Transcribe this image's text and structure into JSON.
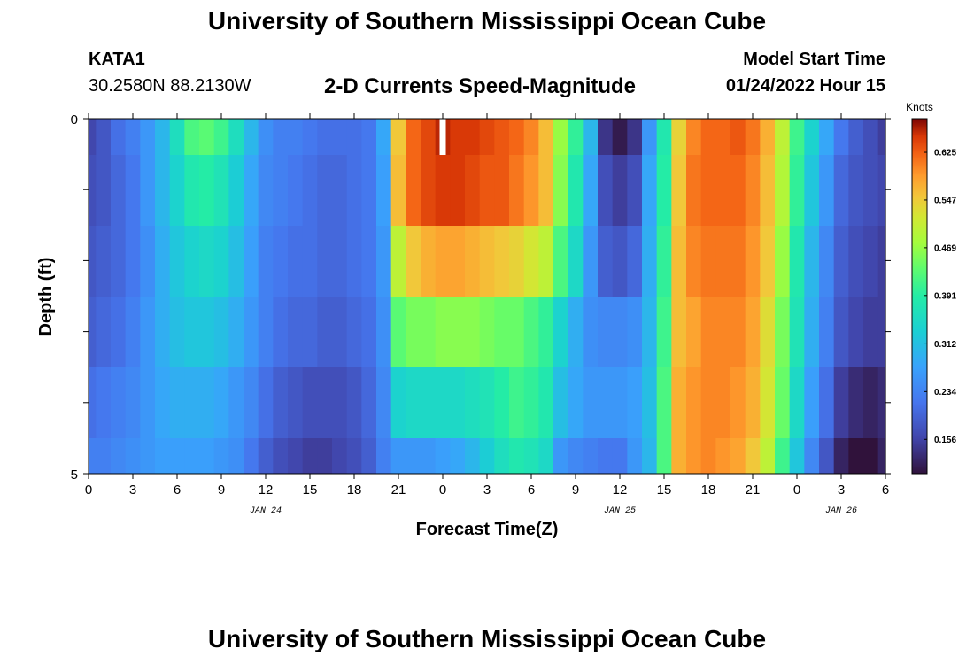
{
  "page": {
    "title": "University of Southern Mississippi Ocean Cube",
    "station": "KATA1",
    "coordinates": "30.2580N  88.2130W",
    "chart_title": "2-D Currents Speed-Magnitude",
    "model_start_label": "Model Start Time",
    "model_start_value": "01/24/2022 Hour 15",
    "footer_title": "University of Southern Mississippi Ocean Cube"
  },
  "chart_data": {
    "type": "heatmap",
    "title": "2-D Currents Speed-Magnitude",
    "xlabel": "Forecast Time(Z)",
    "ylabel": "Depth (ft)",
    "x_tick_labels": [
      "0",
      "3",
      "6",
      "9",
      "12",
      "15",
      "18",
      "21",
      "0",
      "3",
      "6",
      "9",
      "12",
      "15",
      "18",
      "21",
      "0",
      "3",
      "6"
    ],
    "date_labels": [
      {
        "label": "JAN 24",
        "at_hour": 12
      },
      {
        "label": "JAN 25",
        "at_hour": 36
      },
      {
        "label": "JAN 26",
        "at_hour": 51
      }
    ],
    "y_tick_labels": [
      "0",
      "5"
    ],
    "ylim": [
      0,
      5
    ],
    "x_range_hours": [
      0,
      54
    ],
    "colorbar": {
      "title": "Knots",
      "ticks": [
        "0.156",
        "0.234",
        "0.312",
        "0.391",
        "0.469",
        "0.547",
        "0.625"
      ],
      "range": [
        0.1,
        0.68
      ]
    },
    "depth_layers_ft": [
      0,
      0.5,
      1.5,
      2.5,
      3.5,
      4.5
    ],
    "hours": [
      0,
      1,
      2,
      3,
      4,
      5,
      6,
      7,
      8,
      9,
      10,
      11,
      12,
      13,
      14,
      15,
      16,
      17,
      18,
      19,
      20,
      21,
      22,
      23,
      24,
      25,
      26,
      27,
      28,
      29,
      30,
      31,
      32,
      33,
      34,
      35,
      36,
      37,
      38,
      39,
      40,
      41,
      42,
      43,
      44,
      45,
      46,
      47,
      48,
      49,
      50,
      51,
      52,
      53,
      54
    ],
    "speed_knots": [
      [
        0.16,
        0.18,
        0.21,
        0.23,
        0.26,
        0.3,
        0.36,
        0.42,
        0.43,
        0.41,
        0.36,
        0.3,
        0.25,
        0.23,
        0.23,
        0.22,
        0.21,
        0.21,
        0.21,
        0.22,
        0.28,
        0.55,
        0.62,
        0.64,
        0.66,
        0.65,
        0.65,
        0.64,
        0.63,
        0.62,
        0.6,
        0.56,
        0.47,
        0.4,
        0.3,
        0.14,
        0.11,
        0.14,
        0.26,
        0.38,
        0.54,
        0.6,
        0.62,
        0.62,
        0.63,
        0.61,
        0.57,
        0.5,
        0.41,
        0.34,
        0.28,
        0.22,
        0.19,
        0.17,
        0.15
      ],
      [
        0.17,
        0.18,
        0.2,
        0.22,
        0.26,
        0.3,
        0.34,
        0.38,
        0.39,
        0.37,
        0.33,
        0.28,
        0.24,
        0.23,
        0.22,
        0.21,
        0.2,
        0.2,
        0.21,
        0.22,
        0.27,
        0.56,
        0.62,
        0.64,
        0.65,
        0.65,
        0.64,
        0.63,
        0.63,
        0.61,
        0.59,
        0.56,
        0.46,
        0.38,
        0.28,
        0.17,
        0.15,
        0.17,
        0.28,
        0.39,
        0.55,
        0.61,
        0.62,
        0.62,
        0.62,
        0.6,
        0.56,
        0.49,
        0.4,
        0.32,
        0.26,
        0.2,
        0.18,
        0.17,
        0.16
      ],
      [
        0.18,
        0.19,
        0.2,
        0.22,
        0.25,
        0.29,
        0.32,
        0.34,
        0.35,
        0.34,
        0.31,
        0.27,
        0.23,
        0.22,
        0.21,
        0.21,
        0.2,
        0.2,
        0.21,
        0.22,
        0.26,
        0.5,
        0.55,
        0.57,
        0.58,
        0.58,
        0.57,
        0.56,
        0.55,
        0.54,
        0.52,
        0.5,
        0.42,
        0.35,
        0.26,
        0.19,
        0.18,
        0.2,
        0.29,
        0.4,
        0.56,
        0.6,
        0.61,
        0.61,
        0.61,
        0.59,
        0.55,
        0.47,
        0.38,
        0.3,
        0.24,
        0.19,
        0.17,
        0.16,
        0.15
      ],
      [
        0.19,
        0.2,
        0.21,
        0.23,
        0.26,
        0.29,
        0.31,
        0.32,
        0.32,
        0.31,
        0.29,
        0.26,
        0.23,
        0.21,
        0.2,
        0.2,
        0.19,
        0.19,
        0.2,
        0.21,
        0.25,
        0.43,
        0.45,
        0.45,
        0.46,
        0.46,
        0.46,
        0.45,
        0.44,
        0.44,
        0.42,
        0.4,
        0.34,
        0.29,
        0.25,
        0.24,
        0.24,
        0.25,
        0.3,
        0.41,
        0.56,
        0.58,
        0.6,
        0.6,
        0.6,
        0.58,
        0.53,
        0.45,
        0.37,
        0.29,
        0.23,
        0.18,
        0.16,
        0.15,
        0.15
      ],
      [
        0.21,
        0.22,
        0.23,
        0.24,
        0.26,
        0.28,
        0.29,
        0.29,
        0.29,
        0.28,
        0.26,
        0.24,
        0.21,
        0.19,
        0.18,
        0.17,
        0.17,
        0.17,
        0.18,
        0.2,
        0.24,
        0.34,
        0.35,
        0.35,
        0.35,
        0.35,
        0.36,
        0.37,
        0.39,
        0.41,
        0.4,
        0.38,
        0.31,
        0.28,
        0.26,
        0.26,
        0.26,
        0.27,
        0.31,
        0.42,
        0.57,
        0.59,
        0.6,
        0.6,
        0.59,
        0.57,
        0.52,
        0.44,
        0.35,
        0.27,
        0.21,
        0.15,
        0.13,
        0.12,
        0.13
      ],
      [
        0.23,
        0.23,
        0.24,
        0.25,
        0.26,
        0.27,
        0.27,
        0.27,
        0.27,
        0.26,
        0.25,
        0.22,
        0.19,
        0.17,
        0.16,
        0.15,
        0.15,
        0.16,
        0.17,
        0.19,
        0.23,
        0.26,
        0.26,
        0.26,
        0.27,
        0.28,
        0.3,
        0.33,
        0.36,
        0.38,
        0.37,
        0.35,
        0.26,
        0.24,
        0.23,
        0.22,
        0.22,
        0.26,
        0.3,
        0.42,
        0.57,
        0.59,
        0.6,
        0.59,
        0.58,
        0.55,
        0.5,
        0.41,
        0.32,
        0.24,
        0.18,
        0.12,
        0.1,
        0.1,
        0.12
      ]
    ],
    "missing_cells": [
      {
        "layer": 0,
        "hour": 24
      }
    ]
  }
}
